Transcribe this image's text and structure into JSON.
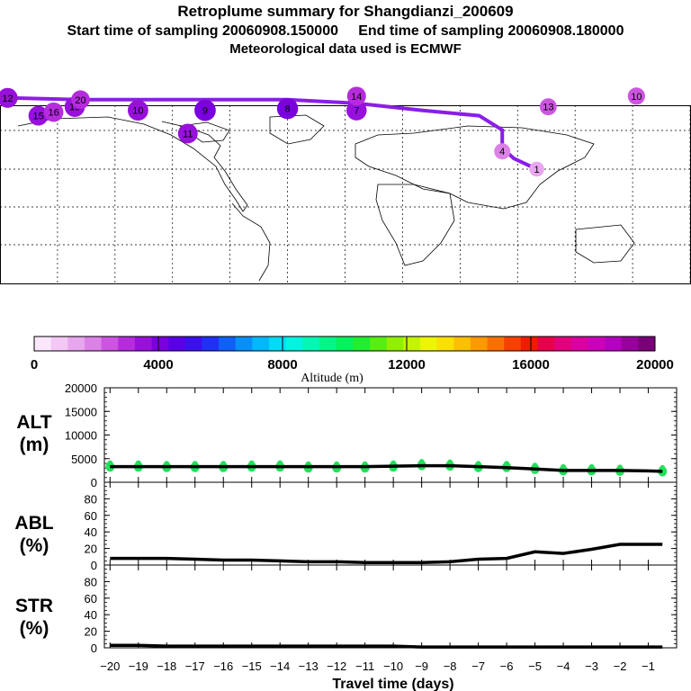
{
  "header": {
    "title": "Retroplume summary for Shangdianzi_200609",
    "line2": "Start time of sampling 20060908.150000     End time of sampling 20060908.180000",
    "line3": "Meteorological data used is ECMWF"
  },
  "colorbar": {
    "tick_labels": [
      "0",
      "4000",
      "8000",
      "12000",
      "16000",
      "20000"
    ],
    "label": "Altitude (m)",
    "colors": [
      "#fbe6fb",
      "#f3c8f5",
      "#e8a6ee",
      "#dc82e7",
      "#cc55e0",
      "#b52cdc",
      "#9810dc",
      "#7a00e0",
      "#5a00e8",
      "#3a10ee",
      "#2030f4",
      "#1060f8",
      "#0890fa",
      "#00b8fc",
      "#00dcf6",
      "#00f4e0",
      "#00f8b4",
      "#00f688",
      "#00f25c",
      "#20ee30",
      "#58ee10",
      "#90f000",
      "#c4f400",
      "#ecf600",
      "#fae000",
      "#fcc000",
      "#fc9a00",
      "#fa7000",
      "#f84000",
      "#f01c00",
      "#e8004c",
      "#e4007c",
      "#dc00a0",
      "#cc00b8",
      "#b400c0",
      "#98009c",
      "#7a0078"
    ]
  },
  "map": {
    "markers": [
      {
        "label": "12",
        "lon": -176,
        "lat": 80,
        "alt": 3400
      },
      {
        "label": "10",
        "lon": -108,
        "lat": 73,
        "alt": 3600
      },
      {
        "label": "9",
        "lon": -73,
        "lat": 73,
        "alt": 3900
      },
      {
        "label": "8",
        "lon": -30,
        "lat": 74,
        "alt": 3800
      },
      {
        "label": "7",
        "lon": 6,
        "lat": 73,
        "alt": 3500
      },
      {
        "label": "15",
        "lon": -160,
        "lat": 70,
        "alt": 3300
      },
      {
        "label": "16",
        "lon": -152,
        "lat": 72,
        "alt": 3200
      },
      {
        "label": "4",
        "lon": 82,
        "lat": 50,
        "alt": 2000
      },
      {
        "label": "14",
        "lon": 6,
        "lat": 81,
        "alt": 3000
      },
      {
        "label": "10",
        "lon": 152,
        "lat": 81,
        "alt": 2400
      },
      {
        "label": "1",
        "lon": 100,
        "lat": 40,
        "alt": 1500
      },
      {
        "label": "13",
        "lon": 106,
        "lat": 75,
        "alt": 2300
      },
      {
        "label": "19",
        "lon": -141,
        "lat": 75,
        "alt": 3500
      },
      {
        "label": "11",
        "lon": -82,
        "lat": 60,
        "alt": 3300
      },
      {
        "label": "20",
        "lon": -138,
        "lat": 79,
        "alt": 2900
      }
    ]
  },
  "charts": {
    "xlabel": "Travel time (days)",
    "xtick_labels": [
      "-20",
      "-19",
      "-18",
      "-17",
      "-16",
      "-15",
      "-14",
      "-13",
      "-12",
      "-11",
      "-10",
      "-9",
      "-8",
      "-7",
      "-6",
      "-5",
      "-4",
      "-3",
      "-2",
      "-1"
    ]
  },
  "chart_data": [
    {
      "type": "line",
      "id": "ALT",
      "ylabel": "ALT (m)",
      "ylabel_line1": "ALT",
      "ylabel_line2": "(m)",
      "ylim": [
        0,
        20000
      ],
      "ytick_labels": [
        "0",
        "5000",
        "10000",
        "15000",
        "20000"
      ],
      "x": [
        -20,
        -19,
        -18,
        -17,
        -16,
        -15,
        -14,
        -13,
        -12,
        -11,
        -10,
        -9,
        -8,
        -7,
        -6,
        -5,
        -4,
        -3,
        -2,
        -1,
        -0.5
      ],
      "values": [
        3300,
        3300,
        3300,
        3300,
        3300,
        3300,
        3300,
        3300,
        3300,
        3300,
        3400,
        3500,
        3500,
        3300,
        3100,
        2800,
        2500,
        2500,
        2500,
        2400,
        2300
      ],
      "scatter": {
        "x": [
          -20,
          -19,
          -18,
          -17,
          -16,
          -15,
          -14,
          -13,
          -12,
          -11,
          -10,
          -9,
          -8,
          -7,
          -6,
          -5,
          -4,
          -3,
          -2,
          -0.5
        ],
        "values": [
          3300,
          3300,
          3200,
          3200,
          3200,
          3300,
          3300,
          3100,
          3100,
          3100,
          3300,
          3600,
          3500,
          3200,
          3200,
          2800,
          2500,
          2500,
          2400,
          2300
        ]
      }
    },
    {
      "type": "line",
      "id": "ABL",
      "ylabel": "ABL (%)",
      "ylabel_line1": "ABL",
      "ylabel_line2": "(%)",
      "ylim": [
        0,
        100
      ],
      "ytick_labels": [
        "0",
        "20",
        "40",
        "60",
        "80"
      ],
      "x": [
        -20,
        -19,
        -18,
        -17,
        -16,
        -15,
        -14,
        -13,
        -12,
        -11,
        -10,
        -9,
        -8,
        -7,
        -6,
        -5,
        -4,
        -3,
        -2,
        -1,
        -0.5
      ],
      "values": [
        8,
        8,
        8,
        7,
        6,
        6,
        5,
        4,
        4,
        3,
        3,
        3,
        4,
        7,
        8,
        16,
        14,
        19,
        25,
        25,
        25
      ]
    },
    {
      "type": "line",
      "id": "STR",
      "ylabel": "STR (%)",
      "ylabel_line1": "STR",
      "ylabel_line2": "(%)",
      "ylim": [
        0,
        100
      ],
      "ytick_labels": [
        "0",
        "20",
        "40",
        "60",
        "80"
      ],
      "x": [
        -20,
        -19,
        -18,
        -17,
        -16,
        -15,
        -14,
        -13,
        -12,
        -11,
        -10,
        -9,
        -8,
        -7,
        -6,
        -5,
        -4,
        -3,
        -2,
        -1,
        -0.5
      ],
      "values": [
        3,
        3,
        2,
        2,
        2,
        2,
        2,
        2,
        2,
        2,
        2,
        1,
        1,
        1,
        1,
        1,
        1,
        1,
        1,
        1,
        1
      ]
    }
  ]
}
